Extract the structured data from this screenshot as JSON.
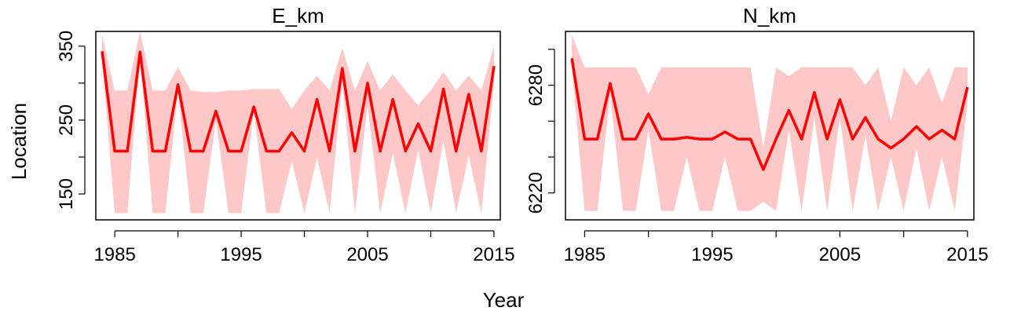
{
  "xlabel": "Year",
  "ylabel": "Location",
  "colors": {
    "line": "#ff0000",
    "band": "#ffc8c8",
    "axis": "#000000"
  },
  "chart_data": [
    {
      "type": "line",
      "title": "E_km",
      "xlabel": "Year",
      "ylabel": "Location",
      "xlim": [
        1983.5,
        2015.5
      ],
      "ylim": [
        115,
        370
      ],
      "xticks": [
        1985,
        1990,
        1995,
        2000,
        2005,
        2010,
        2015
      ],
      "xtick_labels": [
        "1985",
        "1995",
        "2005",
        "2015"
      ],
      "xtick_labels_at": [
        1985,
        1995,
        2005,
        2015
      ],
      "yticks": [
        150,
        200,
        250,
        300,
        350
      ],
      "ytick_labels": [
        "150",
        "250",
        "350"
      ],
      "ytick_labels_at": [
        150,
        250,
        350
      ],
      "x": [
        1984,
        1985,
        1986,
        1987,
        1988,
        1989,
        1990,
        1991,
        1992,
        1993,
        1994,
        1995,
        1996,
        1997,
        1998,
        1999,
        2000,
        2001,
        2002,
        2003,
        2004,
        2005,
        2006,
        2007,
        2008,
        2009,
        2010,
        2011,
        2012,
        2013,
        2014,
        2015
      ],
      "series": [
        {
          "values": [
            343,
            208,
            208,
            342,
            208,
            208,
            298,
            208,
            208,
            262,
            208,
            208,
            268,
            208,
            208,
            233,
            208,
            278,
            208,
            320,
            208,
            300,
            208,
            278,
            208,
            245,
            208,
            292,
            208,
            285,
            208,
            323
          ],
          "lower": [
            330,
            124,
            124,
            335,
            124,
            124,
            290,
            124,
            124,
            250,
            124,
            124,
            262,
            124,
            124,
            195,
            124,
            200,
            124,
            300,
            124,
            270,
            124,
            205,
            124,
            210,
            124,
            222,
            124,
            202,
            124,
            300
          ],
          "upper": [
            365,
            290,
            290,
            370,
            290,
            290,
            322,
            290,
            288,
            288,
            290,
            290,
            292,
            292,
            292,
            265,
            290,
            310,
            290,
            348,
            290,
            330,
            290,
            312,
            290,
            270,
            290,
            315,
            290,
            310,
            290,
            350
          ]
        }
      ]
    },
    {
      "type": "line",
      "title": "N_km",
      "xlabel": "Year",
      "ylabel": "Location",
      "xlim": [
        1983.5,
        2015.5
      ],
      "ylim": [
        6205,
        6310
      ],
      "xticks": [
        1985,
        1990,
        1995,
        2000,
        2005,
        2010,
        2015
      ],
      "xtick_labels": [
        "1985",
        "1995",
        "2005",
        "2015"
      ],
      "xtick_labels_at": [
        1985,
        1995,
        2005,
        2015
      ],
      "yticks": [
        6220,
        6240,
        6260,
        6280,
        6300
      ],
      "ytick_labels": [
        "6220",
        "6280"
      ],
      "ytick_labels_at": [
        6220,
        6280
      ],
      "x": [
        1984,
        1985,
        1986,
        1987,
        1988,
        1989,
        1990,
        1991,
        1992,
        1993,
        1994,
        1995,
        1996,
        1997,
        1998,
        1999,
        2000,
        2001,
        2002,
        2003,
        2004,
        2005,
        2006,
        2007,
        2008,
        2009,
        2010,
        2011,
        2012,
        2013,
        2014,
        2015
      ],
      "series": [
        {
          "values": [
            6295,
            6250,
            6250,
            6281,
            6250,
            6250,
            6264,
            6250,
            6250,
            6251,
            6250,
            6250,
            6254,
            6250,
            6250,
            6233,
            6250,
            6266,
            6250,
            6276,
            6250,
            6272,
            6250,
            6262,
            6250,
            6245,
            6250,
            6257,
            6250,
            6255,
            6250,
            6279
          ],
          "lower": [
            6290,
            6210,
            6210,
            6275,
            6210,
            6210,
            6255,
            6210,
            6210,
            6240,
            6210,
            6210,
            6240,
            6210,
            6210,
            6215,
            6210,
            6255,
            6210,
            6262,
            6210,
            6262,
            6210,
            6252,
            6210,
            6240,
            6210,
            6245,
            6210,
            6240,
            6210,
            6270
          ],
          "upper": [
            6308,
            6290,
            6290,
            6290,
            6290,
            6290,
            6275,
            6290,
            6290,
            6290,
            6290,
            6290,
            6290,
            6290,
            6290,
            6245,
            6290,
            6285,
            6290,
            6290,
            6290,
            6290,
            6290,
            6280,
            6290,
            6260,
            6290,
            6280,
            6290,
            6270,
            6290,
            6290
          ]
        }
      ]
    }
  ]
}
